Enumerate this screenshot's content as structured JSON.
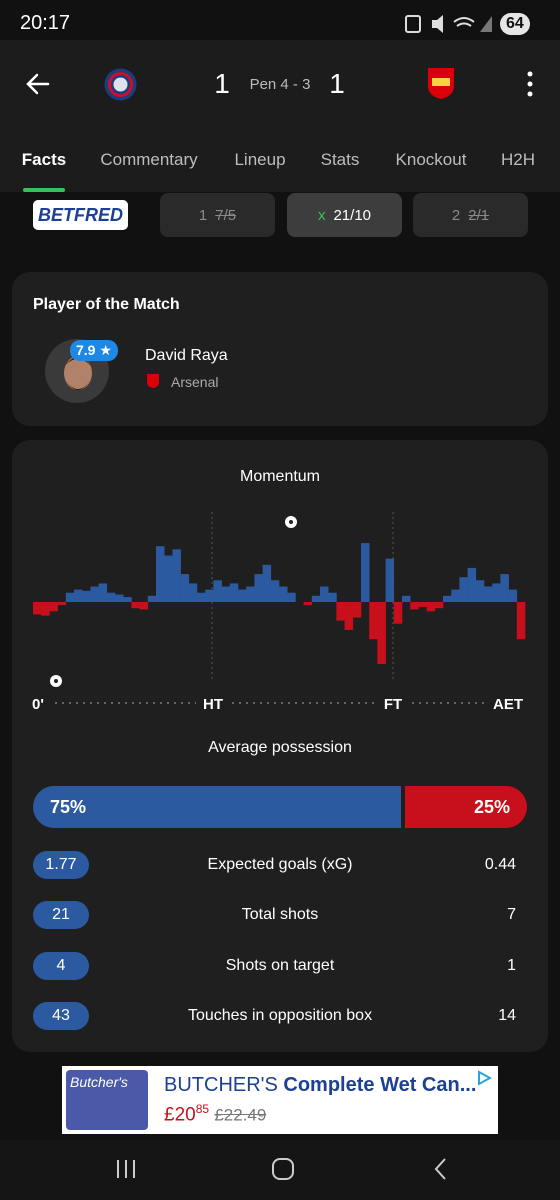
{
  "status_bar": {
    "time": "20:17",
    "battery": "64"
  },
  "header": {
    "home_score": "1",
    "penalties": "Pen 4 - 3",
    "away_score": "1"
  },
  "tabs": [
    "Facts",
    "Commentary",
    "Lineup",
    "Stats",
    "Knockout",
    "H2H"
  ],
  "odds": {
    "bookmaker": "BETFRED",
    "options": [
      {
        "label": "1",
        "odds": "7/5"
      },
      {
        "label": "x",
        "odds": "21/10"
      },
      {
        "label": "2",
        "odds": "2/1"
      }
    ]
  },
  "player_of_match": {
    "title": "Player of the Match",
    "rating": "7.9",
    "name": "David Raya",
    "team": "Arsenal"
  },
  "momentum": {
    "title": "Momentum",
    "values": [
      -20,
      -22,
      -15,
      -5,
      15,
      20,
      18,
      25,
      30,
      15,
      12,
      8,
      -10,
      -12,
      10,
      90,
      75,
      85,
      45,
      30,
      15,
      20,
      35,
      25,
      30,
      20,
      25,
      45,
      60,
      35,
      25,
      15,
      0,
      -5,
      10,
      25,
      15,
      -30,
      -45,
      -25,
      95,
      -60,
      -100,
      70,
      -35,
      10,
      -12,
      -8,
      -15,
      -10,
      10,
      20,
      40,
      55,
      35,
      25,
      30,
      45,
      20,
      -60
    ],
    "ylim": [
      -100,
      100
    ],
    "axis_labels": [
      "0'",
      "HT",
      "FT",
      "AET"
    ]
  },
  "possession": {
    "title": "Average possession",
    "home": {
      "value": 75,
      "label": "75%"
    },
    "away": {
      "value": 25,
      "label": "25%"
    }
  },
  "stats": {
    "rows": [
      {
        "home": "1.77",
        "label": "Expected goals (xG)",
        "away": "0.44"
      },
      {
        "home": "21",
        "label": "Total shots",
        "away": "7"
      },
      {
        "home": "4",
        "label": "Shots on target",
        "away": "1"
      },
      {
        "home": "43",
        "label": "Touches in opposition box",
        "away": "14"
      }
    ]
  },
  "ad": {
    "logo_text": "Butcher's",
    "brand": "BUTCHER'S",
    "headline": "Complete Wet Can...",
    "price": "£20",
    "price_pence": "85",
    "old_price": "£22.49"
  }
}
